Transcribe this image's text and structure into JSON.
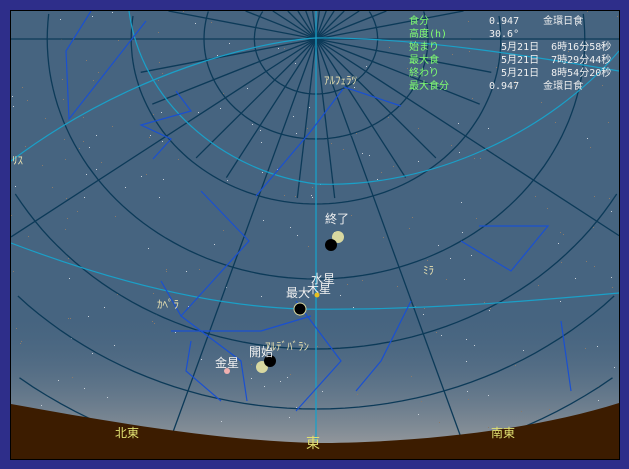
{
  "info": [
    {
      "label": "食分",
      "value": "0.947    金環日食"
    },
    {
      "label": "高度(h)",
      "value": "30.6°"
    },
    {
      "label": "始まり",
      "value": "  5月21日  6時16分58秒"
    },
    {
      "label": "最大食",
      "value": "  5月21日  7時29分44秒"
    },
    {
      "label": "終わり",
      "value": "  5月21日  8時54分20秒"
    },
    {
      "label": "最大食分",
      "value": "0.947    金環日食"
    }
  ],
  "labels": {
    "end": "終了",
    "max": "最大",
    "start": "開始",
    "mercury": "水星",
    "jupiter": "木星",
    "venus": "金星",
    "capella": "ｶﾍﾟﾗ",
    "aldebaran": "ｱﾙﾃﾞﾊﾞﾗﾝ",
    "alpheratz": "ｱﾙﾌｪﾗﾂ",
    "mira": "ﾐﾗ",
    "left_star": "ﾘｽ"
  },
  "directions": {
    "northeast": "北東",
    "east": "東",
    "southeast": "南東"
  },
  "colors": {
    "sky": "#466480",
    "ground": "#3c1c00",
    "frame": "#2e2e8a",
    "grid": "#0c3a58",
    "circle": "#1aa0c8",
    "constellation": "#1a50d0",
    "info_label": "#80ff70",
    "direction": "#e0e070",
    "sun": "#d8d8a0",
    "moon": "#000000"
  }
}
